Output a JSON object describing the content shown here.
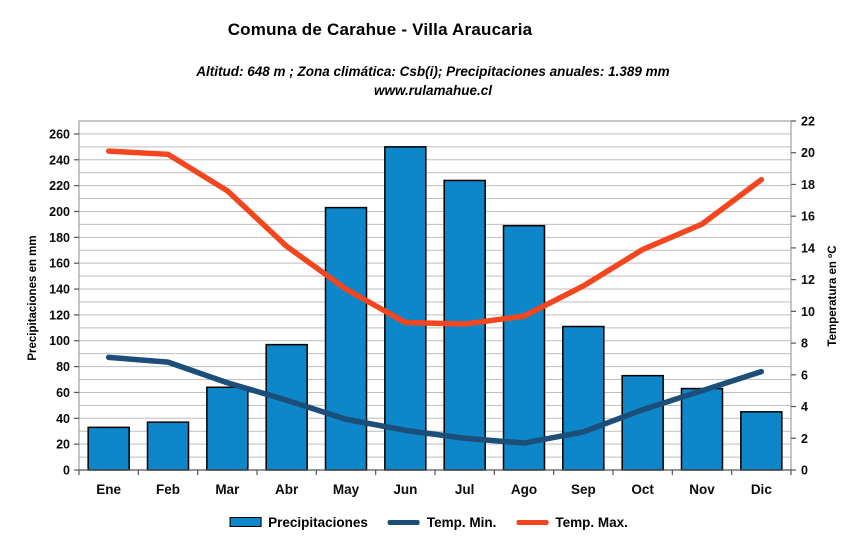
{
  "header": {
    "title": "Comuna de Carahue - Villa Araucaria",
    "subtitle": "Altitud: 648 m ;  Zona climática: Csb(i);  Precipitaciones anuales: 1.389 mm",
    "website": "www.rulamahue.cl"
  },
  "axes": {
    "left_title": "Precipitaciones en mm",
    "right_title": "Temperatura en ºC"
  },
  "legend": [
    {
      "label": "Precipitaciones",
      "type": "bar",
      "color": "#0d86ca"
    },
    {
      "label": "Temp. Min.",
      "type": "line",
      "color": "#1b4e78"
    },
    {
      "label": "Temp. Max.",
      "type": "line",
      "color": "#f4461e"
    }
  ],
  "colors": {
    "bar_fill": "#0d86ca",
    "bar_border": "#000000",
    "temp_min_line": "#1b4e78",
    "temp_max_line": "#f4461e",
    "gridline": "#bebebe",
    "plot_border": "#8c8c8c",
    "axis_tick": "#555555",
    "text": "#000000",
    "background": "#ffffff"
  },
  "chart_data": {
    "type": "bar+line",
    "title": "Comuna de Carahue - Villa Araucaria",
    "subtitle": "Altitud: 648 m ; Zona climática: Csb(i); Precipitaciones anuales: 1.389 mm",
    "categories": [
      "Ene",
      "Feb",
      "Mar",
      "Abr",
      "May",
      "Jun",
      "Jul",
      "Ago",
      "Sep",
      "Oct",
      "Nov",
      "Dic"
    ],
    "series": [
      {
        "name": "Precipitaciones",
        "type": "bar",
        "axis": "left",
        "unit": "mm",
        "color": "#0d86ca",
        "values": [
          33,
          37,
          64,
          97,
          203,
          250,
          224,
          189,
          111,
          73,
          63,
          45
        ]
      },
      {
        "name": "Temp. Min.",
        "type": "line",
        "axis": "right",
        "unit": "°C",
        "color": "#1b4e78",
        "values": [
          7.1,
          6.8,
          5.5,
          4.4,
          3.2,
          2.5,
          2.0,
          1.7,
          2.4,
          3.8,
          5.0,
          6.2
        ]
      },
      {
        "name": "Temp. Max.",
        "type": "line",
        "axis": "right",
        "unit": "°C",
        "color": "#f4461e",
        "values": [
          20.1,
          19.9,
          17.6,
          14.1,
          11.4,
          9.3,
          9.2,
          9.7,
          11.6,
          13.9,
          15.5,
          18.3
        ]
      }
    ],
    "annual_precipitation_mm": 1389,
    "left_axis": {
      "label": "Precipitaciones en mm",
      "min": 0,
      "max": 270,
      "tick_interval": 20,
      "grid_interval": 10,
      "ticks": [
        0,
        20,
        40,
        60,
        80,
        100,
        120,
        140,
        160,
        180,
        200,
        220,
        240,
        260
      ]
    },
    "right_axis": {
      "label": "Temperatura en ºC",
      "min": 0,
      "max": 22,
      "tick_interval": 2,
      "ticks": [
        0,
        2,
        4,
        6,
        8,
        10,
        12,
        14,
        16,
        18,
        20,
        22
      ]
    },
    "grid": true,
    "legend_position": "bottom"
  }
}
